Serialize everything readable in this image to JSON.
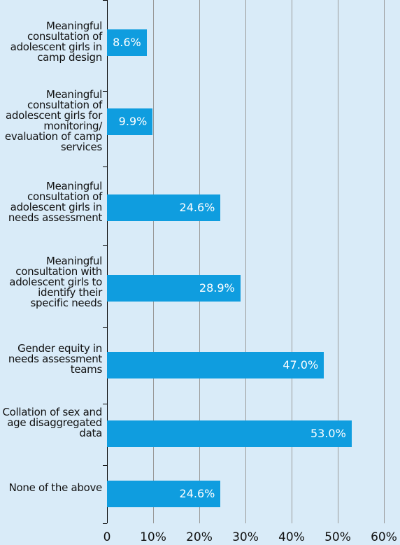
{
  "chart_data": {
    "type": "bar",
    "orientation": "horizontal",
    "categories": [
      "Meaningful consultation of adolescent girls in camp design",
      "Meaningful consultation of adolescent girls for monitoring/ evaluation of camp services",
      "Meaningful consultation of adolescent girls in needs assessment",
      "Meaningful consultation with adolescent girls to identify their specific needs",
      "Gender equity in needs assessment teams",
      "Collation of sex and age disaggregated data",
      "None of the above"
    ],
    "values": [
      8.6,
      9.9,
      24.6,
      28.9,
      47.0,
      53.0,
      24.6
    ],
    "value_labels": [
      "8.6%",
      "9.9%",
      "24.6%",
      "28.9%",
      "47.0%",
      "53.0%",
      "24.6%"
    ],
    "color": "#0f9ddf",
    "xlim": [
      0,
      60
    ],
    "xticks": [
      0,
      {
        "value": 10,
        "label": "10%"
      },
      {
        "value": 20,
        "label": "20%"
      },
      {
        "value": 30,
        "label": "30%"
      },
      {
        "value": 40,
        "label": "40%"
      },
      {
        "value": 50,
        "label": "50%"
      },
      {
        "value": 60,
        "label": "60%"
      }
    ],
    "grid": true
  }
}
